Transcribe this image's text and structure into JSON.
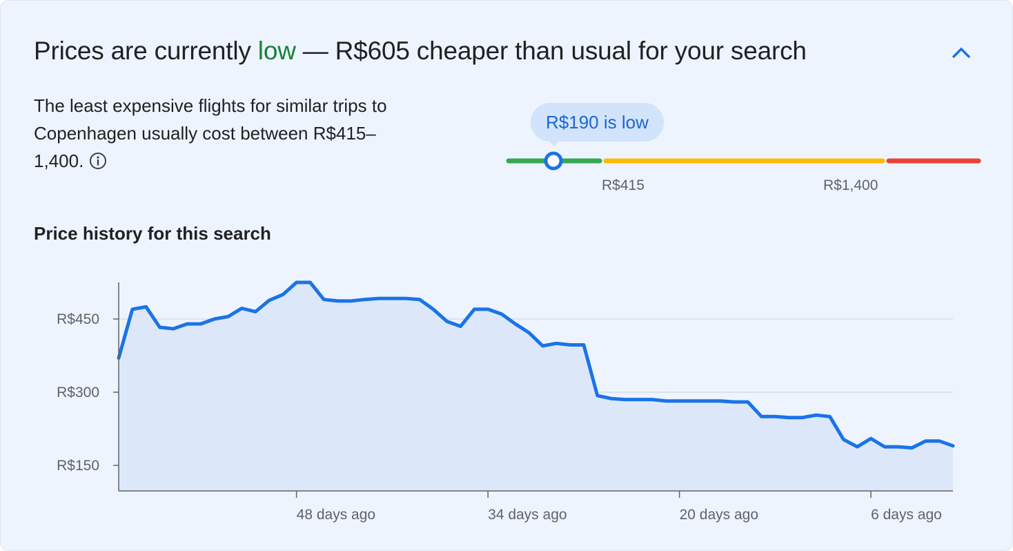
{
  "headline": {
    "prefix": "Prices are currently ",
    "status": "low",
    "suffix": " — R$605 cheaper than usual for your search"
  },
  "description": "The least expensive flights for similar trips to Copenhagen usually cost between R$415–1,400.",
  "range": {
    "bubble": "R$190 is low",
    "low_label": "R$415",
    "high_label": "R$1,400",
    "current_value": 190,
    "scale_min": 0,
    "scale_max": 1850,
    "colors": {
      "low": "#34a853",
      "typical": "#fbbc04",
      "high": "#ea4335",
      "marker": "#1a73e8"
    }
  },
  "section_title": "Price history for this search",
  "colors": {
    "line": "#1a73e8",
    "area": "#dce8fa",
    "grid": "#d3dbe6",
    "accent_low": "#188038"
  },
  "icons": {
    "collapse": "chevron-up-icon",
    "info": "info-icon"
  },
  "chart_data": {
    "type": "area",
    "title": "",
    "xlabel": "",
    "ylabel": "",
    "xlim": [
      60,
      0
    ],
    "ylim": [
      95,
      520
    ],
    "yticks": [
      150,
      300,
      450
    ],
    "ytick_labels": [
      "R$150",
      "R$300",
      "R$450"
    ],
    "xticks": [
      48,
      34,
      20,
      6
    ],
    "xtick_labels": [
      "48 days ago",
      "34 days ago",
      "20 days ago",
      "6 days ago"
    ],
    "grid": true,
    "series": [
      {
        "x": [
          61,
          60,
          59,
          58,
          57,
          56,
          55,
          54,
          53,
          52,
          51,
          50,
          49,
          48,
          47,
          46,
          45,
          44,
          43,
          42,
          41,
          40,
          39,
          38,
          37,
          36,
          35,
          34,
          33,
          32,
          31,
          30,
          29,
          28,
          27,
          26,
          25,
          24,
          23,
          22,
          21,
          20,
          19,
          18,
          17,
          16,
          15,
          14,
          13,
          12,
          11,
          10,
          9,
          8,
          7,
          6,
          5,
          4,
          3,
          2,
          1,
          0
        ],
        "values": [
          370,
          470,
          475,
          433,
          430,
          440,
          440,
          450,
          455,
          472,
          465,
          488,
          500,
          525,
          525,
          490,
          487,
          487,
          490,
          492,
          492,
          492,
          490,
          470,
          445,
          435,
          470,
          470,
          460,
          440,
          422,
          395,
          400,
          397,
          397,
          293,
          287,
          285,
          285,
          285,
          282,
          282,
          282,
          282,
          282,
          280,
          280,
          250,
          250,
          248,
          248,
          253,
          250,
          203,
          188,
          205,
          188,
          188,
          186,
          200,
          200,
          190
        ]
      }
    ]
  }
}
